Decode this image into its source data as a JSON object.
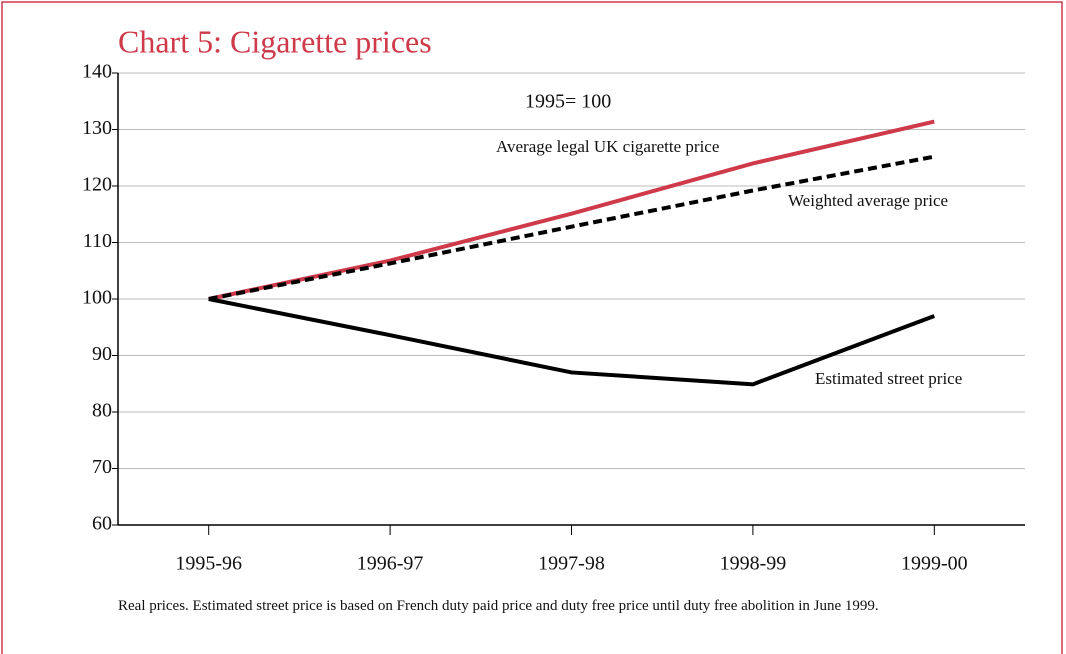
{
  "chart_data": {
    "type": "line",
    "title": "Chart 5: Cigarette prices",
    "subtitle": "1995= 100",
    "categories": [
      "1995-96",
      "1996-97",
      "1997-98",
      "1998-99",
      "1999-00"
    ],
    "series": [
      {
        "name": "Average legal UK cigarette price",
        "color": "#cf3a4b",
        "linestyle": "solid",
        "values": [
          100,
          106.8,
          115.1,
          124,
          131.4
        ]
      },
      {
        "name": "Weighted average price",
        "color": "#000000",
        "linestyle": "dashed",
        "values": [
          100,
          106.3,
          112.8,
          119.2,
          125.2
        ]
      },
      {
        "name": "Estimated street price",
        "color": "#000000",
        "linestyle": "solid",
        "values": [
          100,
          93.6,
          87,
          84.9,
          97
        ]
      }
    ],
    "ylim": [
      60,
      140
    ],
    "yticks": [
      60,
      70,
      80,
      90,
      100,
      110,
      120,
      130,
      140
    ],
    "grid": true,
    "note": "Real prices. Estimated street price is based on French duty paid price and duty free price until duty free abolition in June 1999."
  }
}
